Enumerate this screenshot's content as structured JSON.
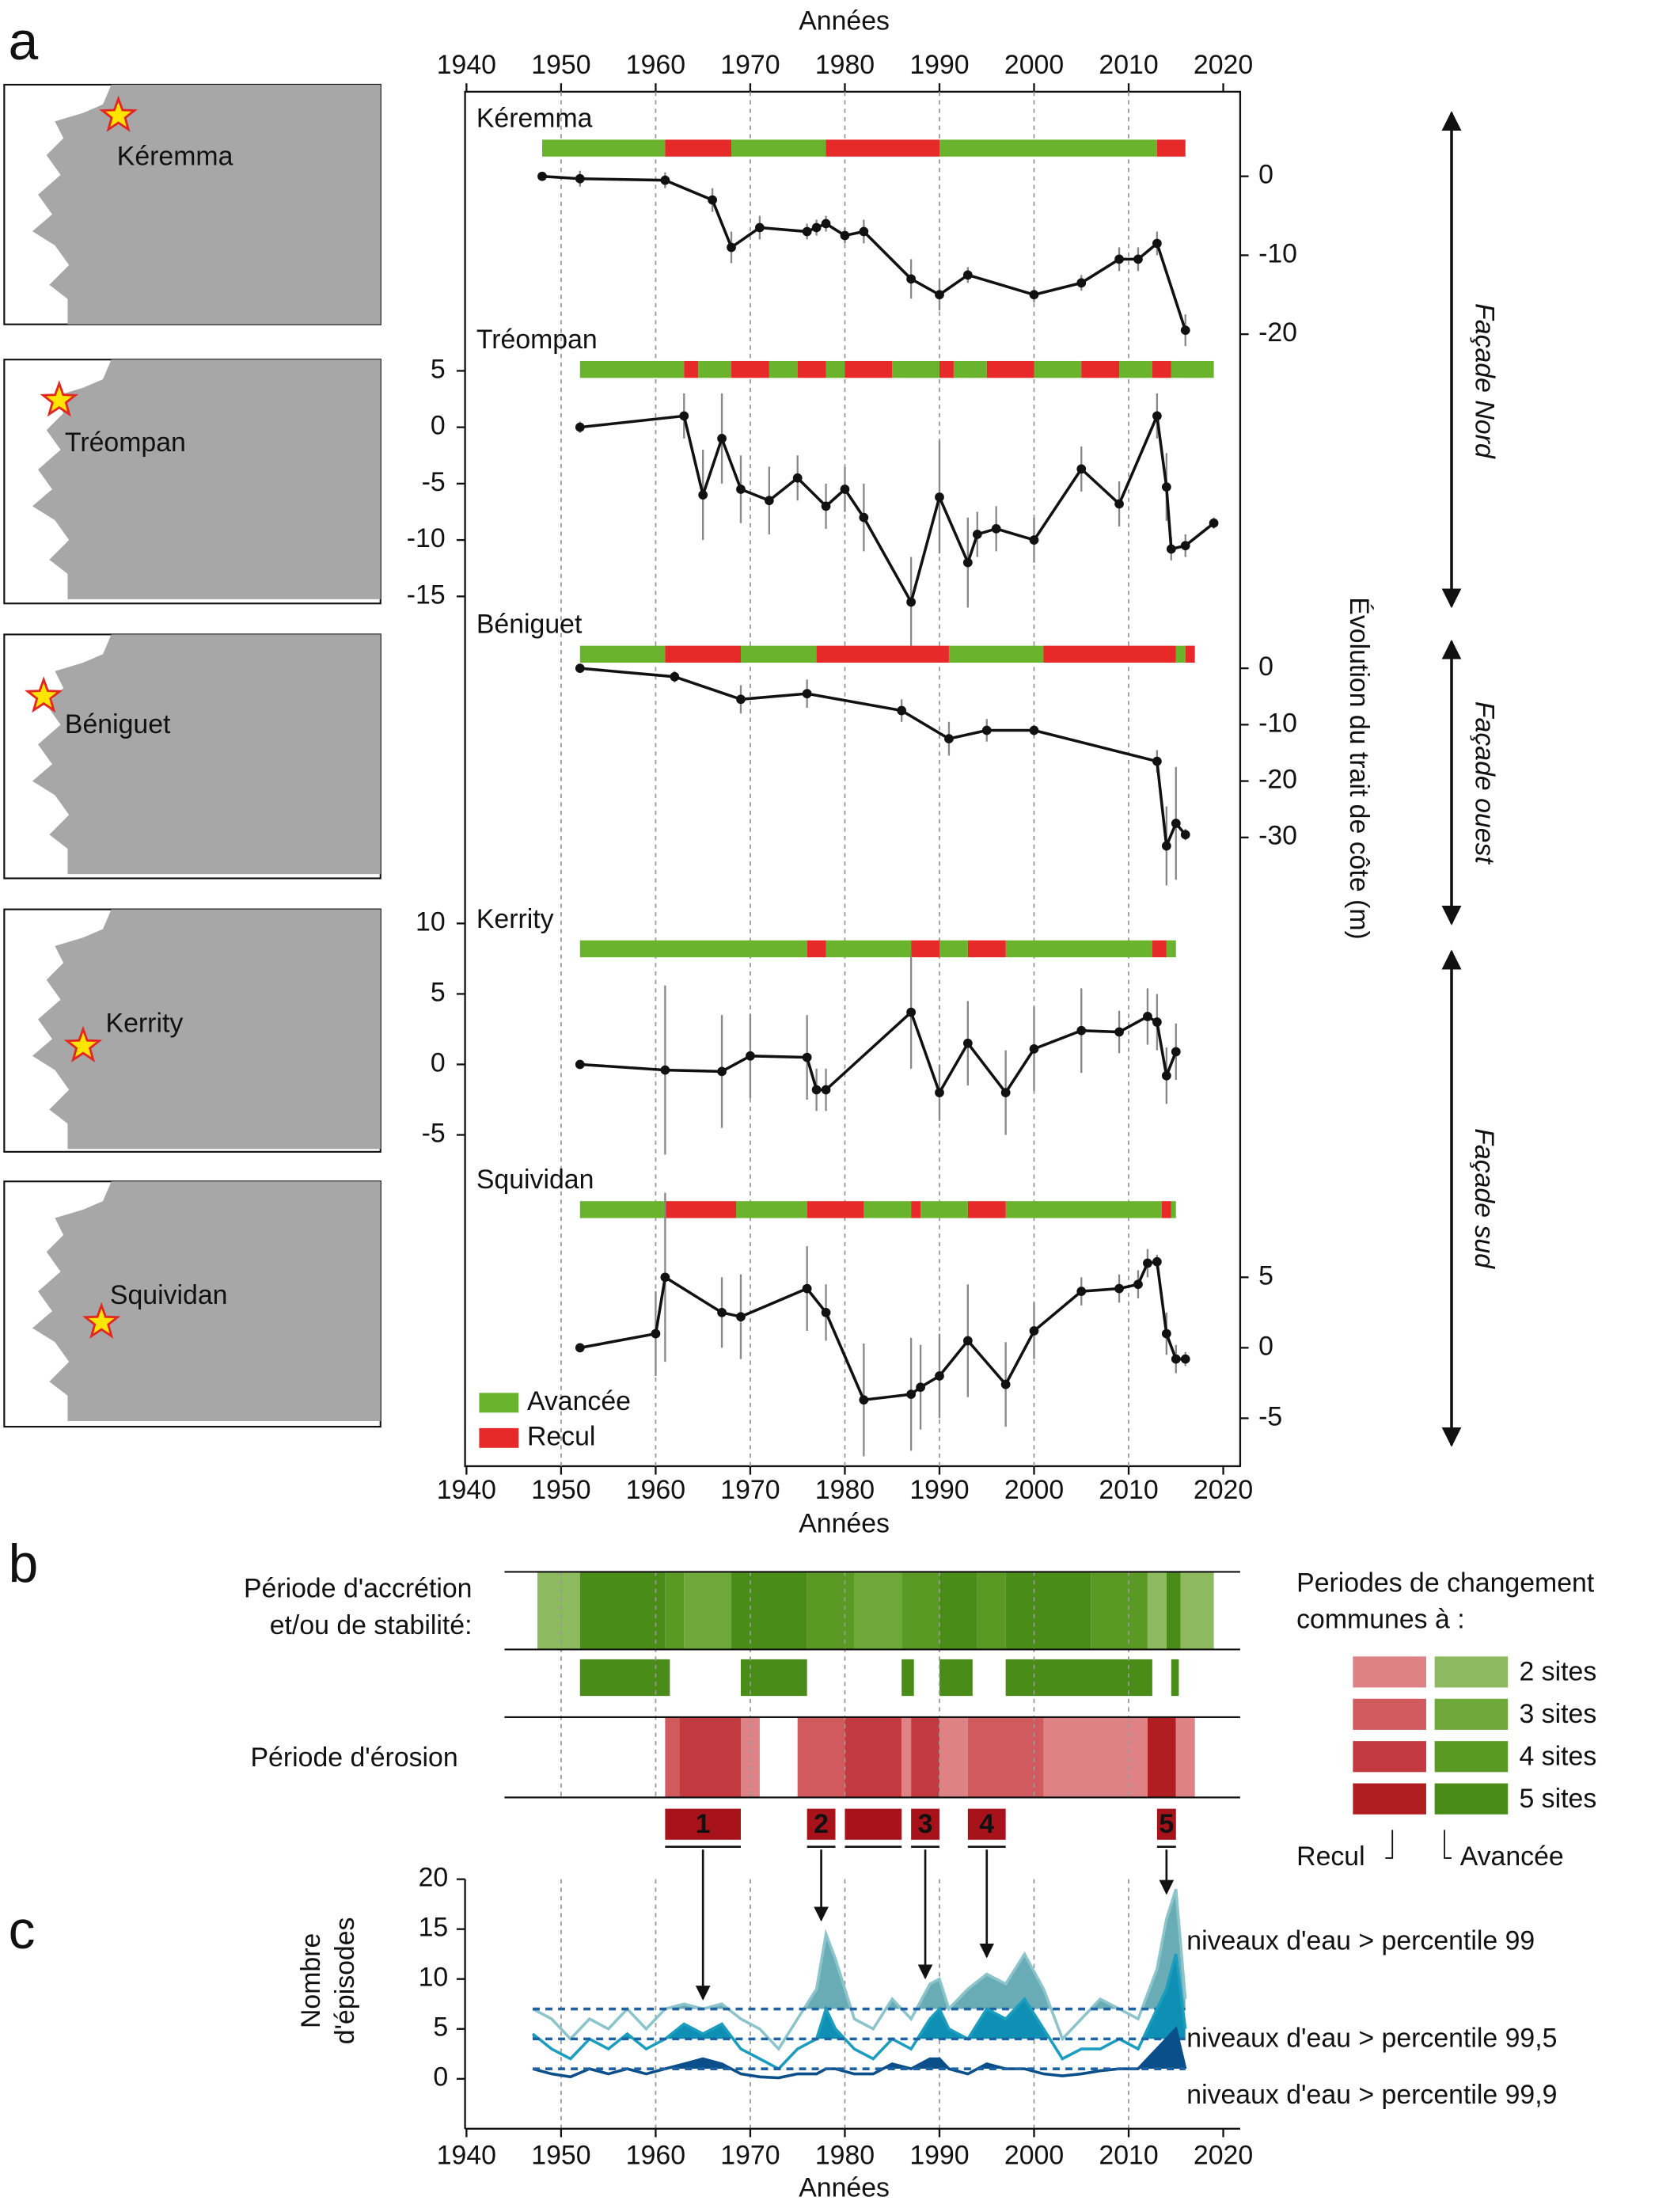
{
  "chart_data": [
    {
      "type": "line",
      "panel_label": "a",
      "x_label": "Années",
      "y_label": "Évolution du trait de côte (m)",
      "xlim": [
        1940,
        2020
      ],
      "xticks": [
        1940,
        1950,
        1960,
        1970,
        1980,
        1990,
        2000,
        2010,
        2020
      ],
      "grid": true,
      "legend": [
        {
          "name": "Avancée",
          "color": "#6ab42d"
        },
        {
          "name": "Recul",
          "color": "#e8292a"
        }
      ],
      "sites": [
        {
          "name": "Kéremma",
          "yaxis": "right",
          "ylim": [
            -25,
            5
          ],
          "yticks": [
            0,
            -10,
            -20
          ],
          "x": [
            1948,
            1952,
            1961,
            1966,
            1968,
            1971,
            1976,
            1977,
            1978,
            1980,
            1982,
            1987,
            1990,
            1993,
            2000,
            2005,
            2009,
            2011,
            2013,
            2016
          ],
          "values": [
            0,
            -0.3,
            -0.5,
            -3,
            -9,
            -6.5,
            -7,
            -6.5,
            -6,
            -7.5,
            -7,
            -13,
            -15,
            -12.5,
            -15,
            -13.5,
            -10.5,
            -10.5,
            -8.5,
            -19.5
          ],
          "errors": [
            0.5,
            1,
            1,
            1.5,
            2,
            1.5,
            1,
            1,
            1,
            1,
            1.5,
            2.5,
            2,
            1,
            1,
            1,
            1.5,
            1.5,
            1.5,
            2
          ],
          "advance": [
            [
              1948,
              1961
            ],
            [
              1968,
              1978
            ],
            [
              1990,
              2013
            ]
          ],
          "retreat": [
            [
              1961,
              1968
            ],
            [
              1978,
              1990
            ],
            [
              2013,
              2016
            ]
          ]
        },
        {
          "name": "Tréompan",
          "yaxis": "left",
          "ylim": [
            -20,
            5
          ],
          "yticks": [
            5,
            0,
            -5,
            -10,
            -15
          ],
          "x": [
            1952,
            1963,
            1965,
            1967,
            1969,
            1972,
            1975,
            1978,
            1980,
            1982,
            1987,
            1990,
            1993,
            1994,
            1996,
            2000,
            2005,
            2009,
            2013,
            2014,
            2014.5,
            2016,
            2019
          ],
          "values": [
            0,
            1,
            -6,
            -1,
            -5.5,
            -6.5,
            -4.5,
            -7,
            -5.5,
            -8,
            -15.5,
            -6.2,
            -12,
            -9.5,
            -9,
            -10,
            -3.7,
            -6.8,
            1,
            -5.3,
            -10.8,
            -10.5,
            -8.5
          ],
          "errors": [
            0.5,
            2,
            4,
            4,
            3,
            3,
            2,
            2,
            2,
            3,
            4,
            5,
            4,
            2,
            2,
            2,
            2,
            2,
            2,
            3,
            1,
            1,
            0.5
          ],
          "advance": [
            [
              1952,
              1963
            ],
            [
              1964.5,
              1968
            ],
            [
              1972,
              1975
            ],
            [
              1978,
              1980
            ],
            [
              1985,
              1990
            ],
            [
              1991.5,
              1995
            ],
            [
              2000,
              2005
            ],
            [
              2009,
              2012.5
            ],
            [
              2014.5,
              2019
            ]
          ],
          "retreat": [
            [
              1963,
              1964.5
            ],
            [
              1968,
              1972
            ],
            [
              1975,
              1978
            ],
            [
              1980,
              1985
            ],
            [
              1990,
              1991.5
            ],
            [
              1995,
              2000
            ],
            [
              2005,
              2009
            ],
            [
              2012.5,
              2014.5
            ]
          ]
        },
        {
          "name": "Béniguet",
          "yaxis": "right",
          "ylim": [
            -35,
            5
          ],
          "yticks": [
            0,
            -10,
            -20,
            -30
          ],
          "x": [
            1952,
            1962,
            1969,
            1976,
            1986,
            1991,
            1995,
            2000,
            2013,
            2014,
            2015,
            2016
          ],
          "values": [
            0,
            -1.5,
            -5.5,
            -4.5,
            -7.5,
            -12.5,
            -11,
            -11,
            -16.5,
            -31.5,
            -27.5,
            -29.5
          ],
          "errors": [
            0.5,
            1,
            2.5,
            2.5,
            2,
            3,
            2,
            1,
            2,
            7,
            10,
            1
          ],
          "advance": [
            [
              1952,
              1961
            ],
            [
              1969,
              1977
            ],
            [
              1991,
              2001
            ],
            [
              2015,
              2016
            ]
          ],
          "retreat": [
            [
              1961,
              1969
            ],
            [
              1977,
              1991
            ],
            [
              2001,
              2015
            ],
            [
              2016,
              2017
            ]
          ]
        },
        {
          "name": "Kerrity",
          "yaxis": "left",
          "ylim": [
            -10,
            10
          ],
          "yticks": [
            10,
            5,
            0,
            -5
          ],
          "x": [
            1952,
            1961,
            1967,
            1970,
            1976,
            1977,
            1978,
            1987,
            1990,
            1993,
            1997,
            2000,
            2005,
            2009,
            2012,
            2013,
            2014,
            2015
          ],
          "values": [
            0,
            -0.4,
            -0.5,
            0.6,
            0.5,
            -1.8,
            -1.8,
            3.7,
            -2,
            1.5,
            -2,
            1.1,
            2.4,
            2.3,
            3.4,
            3,
            -0.8,
            0.9
          ],
          "errors": [
            0.3,
            6,
            4,
            3,
            3,
            1.5,
            1.5,
            4,
            2,
            3,
            3,
            3,
            3,
            1.5,
            2,
            2,
            2,
            2
          ],
          "advance": [
            [
              1952,
              1976
            ],
            [
              1978,
              1987
            ],
            [
              1990,
              1993
            ],
            [
              1997,
              2012.5
            ],
            [
              2014,
              2015
            ]
          ],
          "retreat": [
            [
              1976,
              1978
            ],
            [
              1987,
              1990
            ],
            [
              1993,
              1997
            ],
            [
              2012.5,
              2014
            ]
          ]
        },
        {
          "name": "Squividan",
          "yaxis": "right",
          "ylim": [
            -8,
            10
          ],
          "yticks": [
            5,
            0,
            -5
          ],
          "x": [
            1952,
            1960,
            1961,
            1967,
            1969,
            1976,
            1978,
            1982,
            1987,
            1988,
            1990,
            1993,
            1997,
            2000,
            2005,
            2009,
            2011,
            2012,
            2013,
            2014,
            2015,
            2016
          ],
          "values": [
            0,
            1,
            5,
            2.5,
            2.2,
            4.2,
            2.5,
            -3.7,
            -3.3,
            -2.8,
            -2,
            0.5,
            -2.6,
            1.2,
            4,
            4.2,
            4.5,
            6,
            6.1,
            1,
            -0.8,
            -0.8
          ],
          "errors": [
            0.3,
            3,
            6,
            2.5,
            3,
            3,
            2,
            4,
            4,
            3,
            3,
            4,
            3,
            2,
            1,
            1,
            1,
            1,
            0.5,
            1.5,
            1,
            0.5
          ],
          "advance": [
            [
              1952,
              1961
            ],
            [
              1968.5,
              1976
            ],
            [
              1982,
              1987
            ],
            [
              1988,
              1993
            ],
            [
              1997,
              2013.5
            ],
            [
              2014.5,
              2015
            ]
          ],
          "retreat": [
            [
              1961,
              1968.5
            ],
            [
              1976,
              1982
            ],
            [
              1987,
              1988
            ],
            [
              1993,
              1997
            ],
            [
              2013.5,
              2014.5
            ]
          ]
        }
      ],
      "annotations": [
        "Façade Nord",
        "Façade ouest",
        "Façade sud"
      ]
    },
    {
      "type": "period",
      "panel_label": "b",
      "xlim": [
        1940,
        2020
      ],
      "xticks": [
        1950,
        1960,
        1970,
        1980,
        1990,
        2000,
        2010
      ],
      "accretion_label": [
        "Période d'accrétion",
        "et/ou de stabilité:"
      ],
      "erosion_label": "Période d'érosion",
      "legend_title": [
        "Periodes de changement",
        "communes à :"
      ],
      "counts": [
        2,
        3,
        4,
        5
      ],
      "count_labels": [
        "2 sites",
        "3 sites",
        "4 sites",
        "5 sites"
      ],
      "accretion_colors": [
        "#8dba5f",
        "#6ea838",
        "#5a9a24",
        "#4a8c18"
      ],
      "erosion_colors": [
        "#df8286",
        "#d15a5e",
        "#c23a3f",
        "#b01e22"
      ],
      "retreat_label": "Recul",
      "advance_label": "Avancée",
      "accretion": [
        [
          1947.5,
          1952,
          2
        ],
        [
          1952,
          1961,
          5
        ],
        [
          1961,
          1963,
          4
        ],
        [
          1963,
          1968,
          3
        ],
        [
          1968,
          1976,
          5
        ],
        [
          1976,
          1981,
          4
        ],
        [
          1981,
          1986,
          3
        ],
        [
          1986,
          1990,
          4
        ],
        [
          1990,
          1994,
          5
        ],
        [
          1994,
          1997,
          4
        ],
        [
          1997,
          2006,
          5
        ],
        [
          2006,
          2012,
          4
        ],
        [
          2012,
          2014,
          2
        ],
        [
          2014,
          2015.5,
          5
        ],
        [
          2015.5,
          2019,
          2
        ]
      ],
      "common": [
        [
          1952,
          1961.5
        ],
        [
          1969,
          1976
        ],
        [
          1986,
          1987.3
        ],
        [
          1990,
          1993.5
        ],
        [
          1997,
          2012.5
        ],
        [
          2014.5,
          2015.3
        ]
      ],
      "erosion": [
        [
          1961,
          1962.5,
          3
        ],
        [
          1962.5,
          1969,
          4
        ],
        [
          1969,
          1971,
          2
        ],
        [
          1975,
          1980,
          3
        ],
        [
          1980,
          1986,
          4
        ],
        [
          1986,
          1987,
          2
        ],
        [
          1987,
          1990,
          4
        ],
        [
          1990,
          1993,
          2
        ],
        [
          1993,
          2001,
          3
        ],
        [
          2001,
          2012,
          2
        ],
        [
          2012,
          2015,
          5
        ],
        [
          2015,
          2017,
          2
        ]
      ],
      "episodes": [
        1,
        2,
        null,
        3,
        4,
        5
      ],
      "episode_spans": [
        [
          1961,
          1969
        ],
        [
          1976,
          1979
        ],
        [
          1980,
          1986
        ],
        [
          1987,
          1990
        ],
        [
          1993,
          1997
        ],
        [
          2013,
          2015
        ]
      ],
      "episode_color": "#a8121a"
    },
    {
      "type": "area",
      "panel_label": "c",
      "x_label": "Années",
      "y_label": [
        "Nombre",
        "d'épisodes"
      ],
      "xlim": [
        1940,
        2020
      ],
      "xticks": [
        1940,
        1950,
        1960,
        1970,
        1980,
        1990,
        2000,
        2010,
        2020
      ],
      "ylim": [
        -5,
        20
      ],
      "yticks": [
        0,
        5,
        10,
        15,
        20
      ],
      "grid": true,
      "x": [
        1947,
        1949,
        1951,
        1953,
        1955,
        1957,
        1959,
        1961,
        1963,
        1965,
        1967,
        1969,
        1971,
        1973,
        1975,
        1977,
        1978,
        1979,
        1981,
        1983,
        1985,
        1987,
        1989,
        1990,
        1991,
        1993,
        1995,
        1997,
        1999,
        2001,
        2003,
        2005,
        2007,
        2009,
        2011,
        2013,
        2014,
        2015,
        2016
      ],
      "series": [
        {
          "name": "niveaux d'eau > percentile 99",
          "color": "#8cc4cb",
          "fill": "#6aacb5",
          "threshold": 7,
          "values": [
            7,
            6,
            4,
            6,
            5,
            7,
            5,
            7,
            7.5,
            7,
            7.5,
            6,
            5,
            3,
            6,
            9,
            14.5,
            12,
            6,
            5,
            8,
            6,
            9.5,
            10,
            7,
            9,
            10.5,
            9.5,
            12.5,
            9,
            4,
            6,
            8,
            7,
            6,
            11,
            16,
            19,
            8
          ]
        },
        {
          "name": "niveaux d'eau > percentile 99,5",
          "color": "#1a9dbf",
          "fill": "#0e8fb3",
          "threshold": 4,
          "values": [
            4.5,
            3,
            2,
            4,
            3,
            4.5,
            3,
            4,
            5.5,
            4.5,
            5.5,
            3,
            2,
            1,
            3,
            4,
            7,
            5,
            3,
            2,
            4,
            3,
            6,
            7,
            5,
            4,
            7,
            6,
            8,
            5,
            2,
            3,
            3,
            4,
            3,
            7,
            9,
            12.5,
            5
          ]
        },
        {
          "name": "niveaux d'eau > percentile 99,9",
          "color": "#0a4f8a",
          "fill": "#0a4f8a",
          "threshold": 1,
          "values": [
            1,
            0.5,
            0.2,
            1,
            0.5,
            1,
            0.5,
            1,
            1.5,
            2,
            1.5,
            0.5,
            0.2,
            0.1,
            0.5,
            0.5,
            1,
            1,
            0.5,
            0.5,
            1.5,
            1,
            2,
            2,
            1,
            0.5,
            1.5,
            1,
            1,
            0.5,
            0.3,
            0.5,
            0.8,
            1,
            1,
            3,
            4,
            5,
            1
          ]
        }
      ]
    }
  ]
}
